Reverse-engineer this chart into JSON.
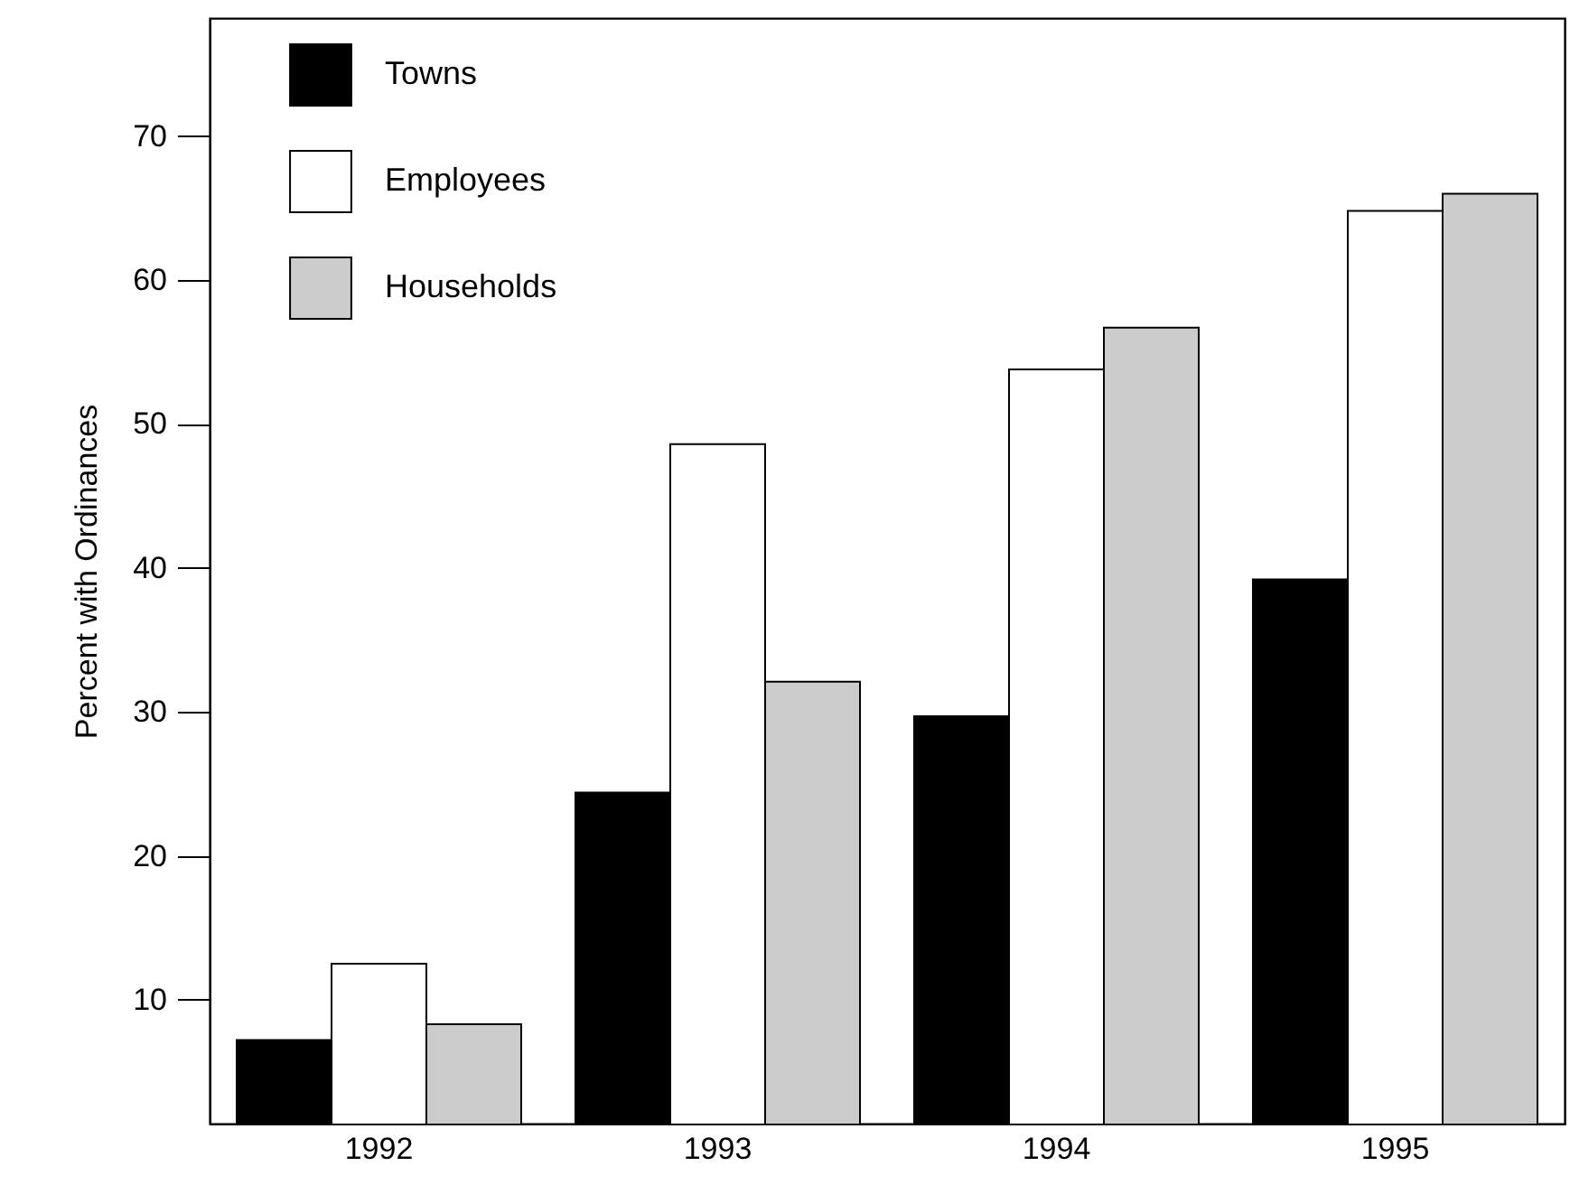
{
  "chart_data": {
    "type": "bar",
    "ylabel": "Percent with Ordinances",
    "categories": [
      "1992",
      "1993",
      "1994",
      "1995"
    ],
    "series": [
      {
        "name": "Towns",
        "color": "#000000",
        "values": [
          7.2,
          24.4,
          29.7,
          39.2
        ]
      },
      {
        "name": "Employees",
        "color": "#ffffff",
        "values": [
          12.5,
          48.6,
          53.8,
          64.8
        ]
      },
      {
        "name": "Households",
        "color": "#cccccc",
        "values": [
          8.3,
          32.1,
          56.7,
          66.0
        ]
      }
    ],
    "ylim": [
      1.4,
      78.2
    ],
    "yticks": [
      10,
      20,
      30,
      40,
      50,
      60,
      70
    ],
    "grid": false,
    "legend": "top left"
  }
}
